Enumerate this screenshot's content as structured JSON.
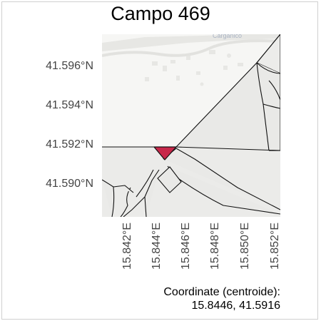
{
  "map": {
    "title": "Campo 469",
    "lat_ticks": [
      "41.596°N",
      "41.594°N",
      "41.592°N",
      "41.590°N"
    ],
    "lon_ticks": [
      "15.842°E",
      "15.844°E",
      "15.846°E",
      "15.848°E",
      "15.850°E",
      "15.852°E"
    ],
    "caption": {
      "label": "Coordinate (centroide):",
      "value": "15.8446, 41.5916"
    },
    "colors": {
      "highlight": "#c8284a",
      "parcel_fill": "#e8e8e6",
      "background": "#f5f5f3",
      "lines": "#111111"
    }
  }
}
